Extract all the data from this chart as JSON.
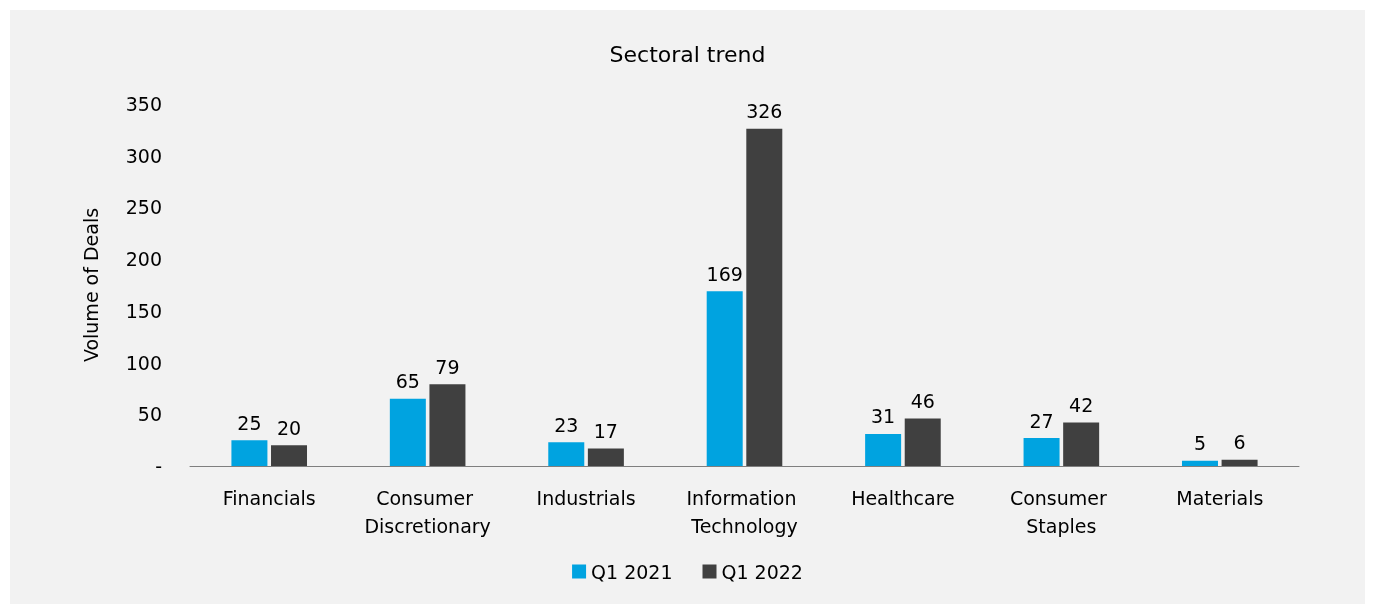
{
  "chart_data": {
    "type": "bar",
    "title": "Sectoral trend",
    "ylabel": "Volume of Deals",
    "categories": [
      "Financials",
      "Consumer Discretionary",
      "Industrials",
      "Information Technology",
      "Healthcare",
      "Consumer Staples",
      "Materials"
    ],
    "series": [
      {
        "name": "Q1 2021",
        "color": "#00a3e0",
        "values": [
          25,
          65,
          23,
          169,
          31,
          27,
          5
        ]
      },
      {
        "name": "Q1 2022",
        "color": "#404040",
        "values": [
          20,
          79,
          17,
          326,
          46,
          42,
          6
        ]
      }
    ],
    "ylim": [
      0,
      350
    ],
    "yticks": [
      {
        "value": 0,
        "label": "-"
      },
      50,
      100,
      150,
      200,
      250,
      300,
      350
    ],
    "grid": false,
    "legend": "bottom",
    "data_labels": true
  }
}
